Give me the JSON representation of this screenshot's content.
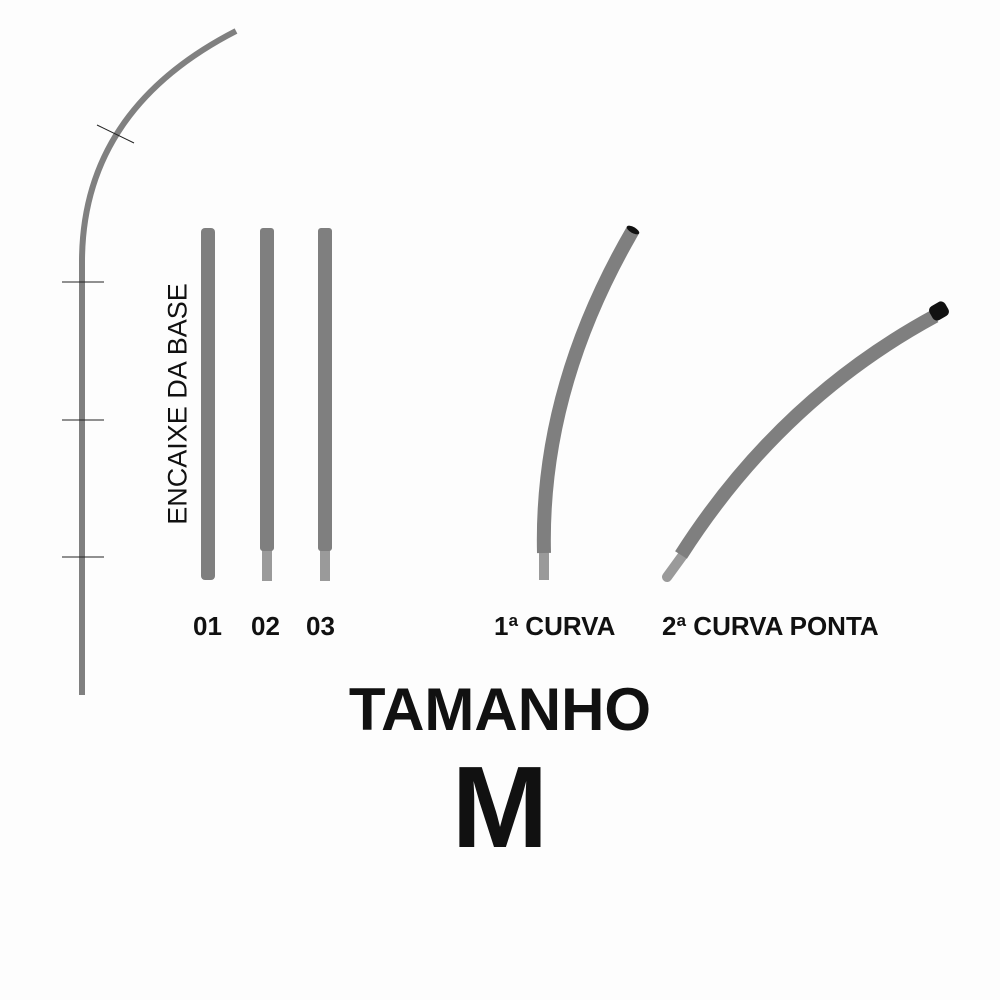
{
  "labels": {
    "base_fitting": "ENCAIXE DA BASE",
    "piece_01": "01",
    "piece_02": "02",
    "piece_03": "03",
    "first_curve": "1ª CURVA",
    "second_curve_tip": "2ª CURVA PONTA"
  },
  "title": "TAMANHO",
  "size": "M",
  "colors": {
    "tube": "#7f7f7f",
    "tube_end": "#9a9a9a",
    "cap": "#111111",
    "line": "#808080",
    "text": "#111111"
  }
}
